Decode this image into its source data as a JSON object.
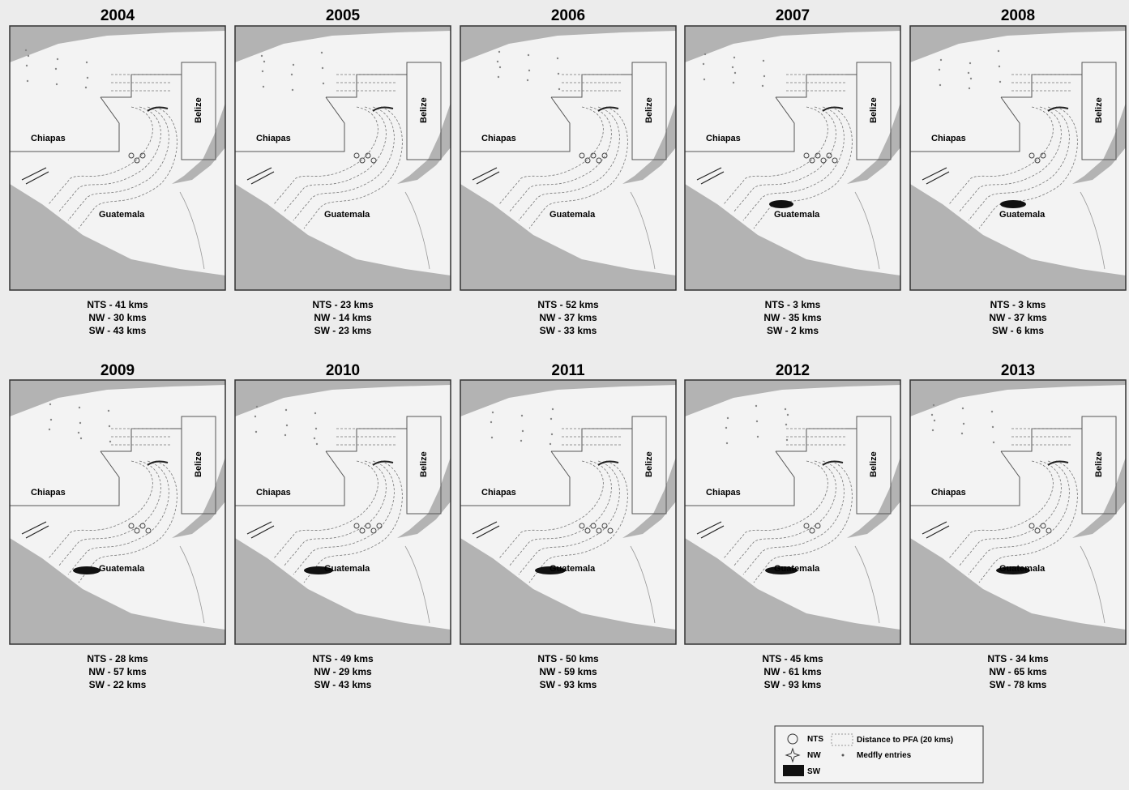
{
  "panels": [
    {
      "year": "2004",
      "captions": [
        "NTS - 41 kms",
        "NW - 30 kms",
        "SW - 43 kms"
      ]
    },
    {
      "year": "2005",
      "captions": [
        "NTS - 23 kms",
        "NW - 14 kms",
        "SW - 23 kms"
      ]
    },
    {
      "year": "2006",
      "captions": [
        "NTS - 52 kms",
        "NW - 37 kms",
        "SW - 33 kms"
      ]
    },
    {
      "year": "2007",
      "captions": [
        "NTS -  3 kms",
        "NW - 35 kms",
        "SW -  2 kms"
      ]
    },
    {
      "year": "2008",
      "captions": [
        "NTS -  3 kms",
        "NW - 37 kms",
        "SW -  6 kms"
      ]
    },
    {
      "year": "2009",
      "captions": [
        "NTS - 28 kms",
        "NW - 57 kms",
        "SW - 22 kms"
      ]
    },
    {
      "year": "2010",
      "captions": [
        "NTS - 49 kms",
        "NW - 29 kms",
        "SW - 43 kms"
      ]
    },
    {
      "year": "2011",
      "captions": [
        "NTS - 50 kms",
        "NW - 59 kms",
        "SW - 93 kms"
      ]
    },
    {
      "year": "2012",
      "captions": [
        "NTS - 45 kms",
        "NW - 61 kms",
        "SW - 93 kms"
      ]
    },
    {
      "year": "2013",
      "captions": [
        "NTS - 34 kms",
        "NW - 65 kms",
        "SW - 78 kms"
      ]
    }
  ],
  "map_labels": {
    "chiapas": "Chiapas",
    "guatemala": "Guatemala",
    "belize": "Belize"
  },
  "legend": {
    "nts": "NTS",
    "nw": "NW",
    "sw": "SW",
    "pfa": "Distance to PFA (20 kms)",
    "medfly": "Medfly entries"
  }
}
